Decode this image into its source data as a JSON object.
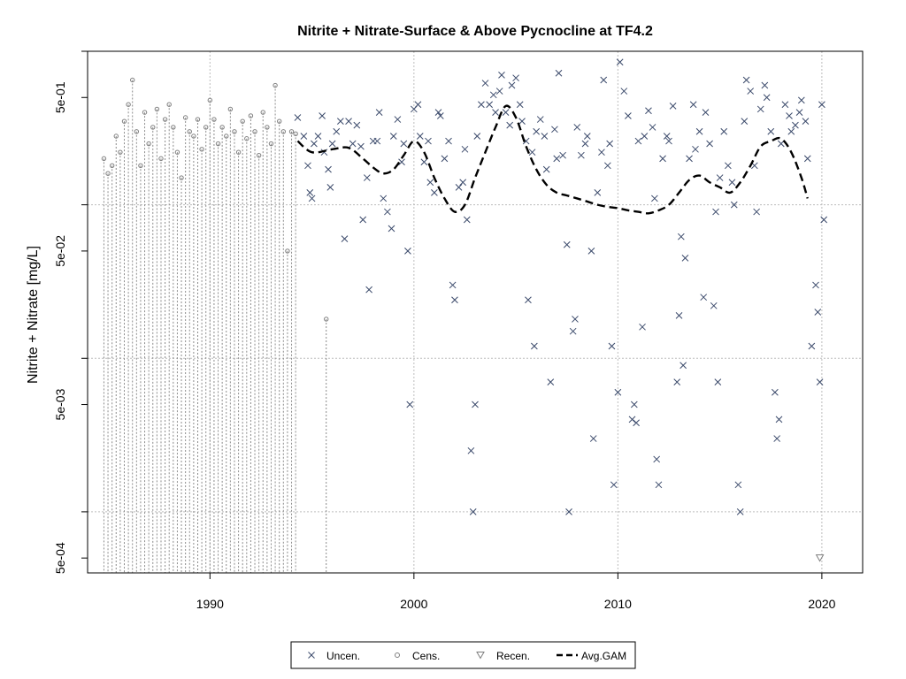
{
  "chart_data": {
    "type": "scatter",
    "title": "Nitrite + Nitrate-Surface & Above Pycnocline at TF4.2",
    "xlabel": "",
    "ylabel": "Nitrite + Nitrate [mg/L]",
    "y_scale": "log10",
    "xlim": [
      1984,
      2022
    ],
    "ylim": [
      0.0004,
      1.0
    ],
    "x_ticks": [
      1990,
      2000,
      2010,
      2020
    ],
    "x_tick_labels": [
      "1990",
      "2000",
      "2010",
      "2020"
    ],
    "y_ticks": [
      0.0005,
      0.005,
      0.05,
      0.5
    ],
    "y_tick_labels": [
      "5e-04",
      "5e-03",
      "5e-02",
      "5e-01"
    ],
    "y_gridlines": [
      0.001,
      0.01,
      0.1,
      1.0
    ],
    "x_gridlines": [
      1990,
      2000,
      2010,
      2020
    ],
    "grid": true,
    "legend_position": "bottom",
    "legend": [
      {
        "label": "Uncen.",
        "symbol": "x",
        "color": "#3b4a6b"
      },
      {
        "label": "Cens.",
        "symbol": "circle",
        "color": "#7f7f7f"
      },
      {
        "label": "Recen.",
        "symbol": "triangle-down",
        "color": "#7f7f7f"
      },
      {
        "label": "Avg.GAM",
        "symbol": "dashed-line",
        "color": "#000000"
      }
    ],
    "series": [
      {
        "name": "Uncen.",
        "points": [
          [
            1994.3,
            0.37
          ],
          [
            1994.6,
            0.28
          ],
          [
            1994.8,
            0.18
          ],
          [
            1994.9,
            0.12
          ],
          [
            1995.0,
            0.11
          ],
          [
            1995.1,
            0.25
          ],
          [
            1995.3,
            0.28
          ],
          [
            1995.5,
            0.38
          ],
          [
            1995.6,
            0.22
          ],
          [
            1995.8,
            0.17
          ],
          [
            1995.9,
            0.13
          ],
          [
            1996.0,
            0.25
          ],
          [
            1996.2,
            0.3
          ],
          [
            1996.4,
            0.35
          ],
          [
            1996.6,
            0.06
          ],
          [
            1996.8,
            0.35
          ],
          [
            1997.0,
            0.25
          ],
          [
            1997.2,
            0.33
          ],
          [
            1997.4,
            0.24
          ],
          [
            1997.5,
            0.08
          ],
          [
            1997.7,
            0.15
          ],
          [
            1997.8,
            0.028
          ],
          [
            1998.0,
            0.26
          ],
          [
            1998.2,
            0.26
          ],
          [
            1998.3,
            0.4
          ],
          [
            1998.5,
            0.11
          ],
          [
            1998.7,
            0.09
          ],
          [
            1998.9,
            0.07
          ],
          [
            1999.0,
            0.28
          ],
          [
            1999.2,
            0.36
          ],
          [
            1999.4,
            0.19
          ],
          [
            1999.5,
            0.25
          ],
          [
            1999.7,
            0.05
          ],
          [
            1999.8,
            0.005
          ],
          [
            2000.0,
            0.42
          ],
          [
            2000.2,
            0.45
          ],
          [
            2000.3,
            0.28
          ],
          [
            2000.5,
            0.19
          ],
          [
            2000.7,
            0.26
          ],
          [
            2000.8,
            0.14
          ],
          [
            2001.0,
            0.12
          ],
          [
            2001.2,
            0.4
          ],
          [
            2001.3,
            0.38
          ],
          [
            2001.5,
            0.2
          ],
          [
            2001.7,
            0.26
          ],
          [
            2001.9,
            0.03
          ],
          [
            2002.0,
            0.024
          ],
          [
            2002.2,
            0.13
          ],
          [
            2002.4,
            0.14
          ],
          [
            2002.5,
            0.23
          ],
          [
            2002.6,
            0.08
          ],
          [
            2002.8,
            0.0025
          ],
          [
            2002.9,
            0.001
          ],
          [
            2003.0,
            0.005
          ],
          [
            2003.1,
            0.28
          ],
          [
            2003.3,
            0.45
          ],
          [
            2003.5,
            0.62
          ],
          [
            2003.7,
            0.45
          ],
          [
            2003.9,
            0.52
          ],
          [
            2004.0,
            0.4
          ],
          [
            2004.2,
            0.55
          ],
          [
            2004.3,
            0.7
          ],
          [
            2004.5,
            0.4
          ],
          [
            2004.7,
            0.33
          ],
          [
            2004.8,
            0.6
          ],
          [
            2005.0,
            0.67
          ],
          [
            2005.2,
            0.45
          ],
          [
            2005.3,
            0.35
          ],
          [
            2005.5,
            0.26
          ],
          [
            2005.6,
            0.024
          ],
          [
            2005.8,
            0.22
          ],
          [
            2005.9,
            0.012
          ],
          [
            2006.0,
            0.3
          ],
          [
            2006.2,
            0.36
          ],
          [
            2006.4,
            0.28
          ],
          [
            2006.5,
            0.17
          ],
          [
            2006.7,
            0.007
          ],
          [
            2006.9,
            0.31
          ],
          [
            2007.0,
            0.2
          ],
          [
            2007.1,
            0.72
          ],
          [
            2007.3,
            0.21
          ],
          [
            2007.5,
            0.055
          ],
          [
            2007.6,
            0.001
          ],
          [
            2007.8,
            0.015
          ],
          [
            2007.9,
            0.018
          ],
          [
            2008.0,
            0.32
          ],
          [
            2008.2,
            0.21
          ],
          [
            2008.4,
            0.25
          ],
          [
            2008.5,
            0.28
          ],
          [
            2008.7,
            0.05
          ],
          [
            2008.8,
            0.003
          ],
          [
            2009.0,
            0.12
          ],
          [
            2009.2,
            0.22
          ],
          [
            2009.3,
            0.65
          ],
          [
            2009.5,
            0.18
          ],
          [
            2009.6,
            0.25
          ],
          [
            2009.7,
            0.012
          ],
          [
            2009.8,
            0.0015
          ],
          [
            2010.0,
            0.006
          ],
          [
            2010.1,
            0.85
          ],
          [
            2010.3,
            0.55
          ],
          [
            2010.5,
            0.38
          ],
          [
            2010.7,
            0.004
          ],
          [
            2010.8,
            0.005
          ],
          [
            2010.9,
            0.0038
          ],
          [
            2011.0,
            0.26
          ],
          [
            2011.2,
            0.016
          ],
          [
            2011.3,
            0.28
          ],
          [
            2011.5,
            0.41
          ],
          [
            2011.7,
            0.32
          ],
          [
            2011.8,
            0.11
          ],
          [
            2011.9,
            0.0022
          ],
          [
            2012.0,
            0.0015
          ],
          [
            2012.2,
            0.2
          ],
          [
            2012.4,
            0.28
          ],
          [
            2012.5,
            0.26
          ],
          [
            2012.7,
            0.44
          ],
          [
            2012.9,
            0.007
          ],
          [
            2013.0,
            0.019
          ],
          [
            2013.1,
            0.062
          ],
          [
            2013.2,
            0.009
          ],
          [
            2013.3,
            0.045
          ],
          [
            2013.5,
            0.2
          ],
          [
            2013.7,
            0.45
          ],
          [
            2013.8,
            0.23
          ],
          [
            2014.0,
            0.3
          ],
          [
            2014.2,
            0.025
          ],
          [
            2014.3,
            0.4
          ],
          [
            2014.5,
            0.25
          ],
          [
            2014.7,
            0.022
          ],
          [
            2014.8,
            0.09
          ],
          [
            2014.9,
            0.007
          ],
          [
            2015.0,
            0.15
          ],
          [
            2015.2,
            0.3
          ],
          [
            2015.4,
            0.18
          ],
          [
            2015.6,
            0.14
          ],
          [
            2015.7,
            0.1
          ],
          [
            2015.9,
            0.0015
          ],
          [
            2016.0,
            0.001
          ],
          [
            2016.2,
            0.35
          ],
          [
            2016.3,
            0.65
          ],
          [
            2016.5,
            0.55
          ],
          [
            2016.7,
            0.18
          ],
          [
            2016.8,
            0.09
          ],
          [
            2017.0,
            0.42
          ],
          [
            2017.2,
            0.6
          ],
          [
            2017.3,
            0.5
          ],
          [
            2017.5,
            0.3
          ],
          [
            2017.7,
            0.006
          ],
          [
            2017.8,
            0.003
          ],
          [
            2017.9,
            0.004
          ],
          [
            2018.0,
            0.25
          ],
          [
            2018.2,
            0.45
          ],
          [
            2018.4,
            0.38
          ],
          [
            2018.5,
            0.3
          ],
          [
            2018.7,
            0.33
          ],
          [
            2018.9,
            0.4
          ],
          [
            2019.0,
            0.48
          ],
          [
            2019.2,
            0.35
          ],
          [
            2019.3,
            0.2
          ],
          [
            2019.5,
            0.012
          ],
          [
            2019.7,
            0.03
          ],
          [
            2019.8,
            0.02
          ],
          [
            2019.9,
            0.007
          ],
          [
            2020.0,
            0.45
          ],
          [
            2020.1,
            0.08
          ]
        ]
      },
      {
        "name": "Cens.",
        "points": [
          [
            1984.8,
            0.2
          ],
          [
            1985.0,
            0.16
          ],
          [
            1985.2,
            0.18
          ],
          [
            1985.4,
            0.28
          ],
          [
            1985.6,
            0.22
          ],
          [
            1985.8,
            0.35
          ],
          [
            1986.0,
            0.45
          ],
          [
            1986.2,
            0.65
          ],
          [
            1986.4,
            0.3
          ],
          [
            1986.6,
            0.18
          ],
          [
            1986.8,
            0.4
          ],
          [
            1987.0,
            0.25
          ],
          [
            1987.2,
            0.32
          ],
          [
            1987.4,
            0.42
          ],
          [
            1987.6,
            0.2
          ],
          [
            1987.8,
            0.36
          ],
          [
            1988.0,
            0.45
          ],
          [
            1988.2,
            0.32
          ],
          [
            1988.4,
            0.22
          ],
          [
            1988.6,
            0.15
          ],
          [
            1988.8,
            0.37
          ],
          [
            1989.0,
            0.3
          ],
          [
            1989.2,
            0.28
          ],
          [
            1989.4,
            0.36
          ],
          [
            1989.6,
            0.23
          ],
          [
            1989.8,
            0.32
          ],
          [
            1990.0,
            0.48
          ],
          [
            1990.2,
            0.36
          ],
          [
            1990.4,
            0.25
          ],
          [
            1990.6,
            0.32
          ],
          [
            1990.8,
            0.28
          ],
          [
            1991.0,
            0.42
          ],
          [
            1991.2,
            0.3
          ],
          [
            1991.4,
            0.22
          ],
          [
            1991.6,
            0.35
          ],
          [
            1991.8,
            0.27
          ],
          [
            1992.0,
            0.38
          ],
          [
            1992.2,
            0.3
          ],
          [
            1992.4,
            0.21
          ],
          [
            1992.6,
            0.4
          ],
          [
            1992.8,
            0.32
          ],
          [
            1993.0,
            0.25
          ],
          [
            1993.2,
            0.6
          ],
          [
            1993.4,
            0.35
          ],
          [
            1993.6,
            0.3
          ],
          [
            1993.8,
            0.05
          ],
          [
            1994.0,
            0.3
          ],
          [
            1994.2,
            0.29
          ],
          [
            1995.7,
            0.018
          ]
        ]
      },
      {
        "name": "Recen.",
        "points": [
          [
            2019.9,
            0.0005
          ]
        ]
      },
      {
        "name": "Avg.GAM",
        "points": [
          [
            1994.3,
            0.26
          ],
          [
            1995.0,
            0.22
          ],
          [
            1996.0,
            0.23
          ],
          [
            1996.8,
            0.235
          ],
          [
            1997.5,
            0.2
          ],
          [
            1998.0,
            0.175
          ],
          [
            1998.5,
            0.16
          ],
          [
            1999.0,
            0.17
          ],
          [
            1999.5,
            0.21
          ],
          [
            2000.0,
            0.26
          ],
          [
            2000.5,
            0.22
          ],
          [
            2001.0,
            0.15
          ],
          [
            2001.5,
            0.11
          ],
          [
            2002.0,
            0.09
          ],
          [
            2002.5,
            0.1
          ],
          [
            2003.0,
            0.15
          ],
          [
            2003.5,
            0.22
          ],
          [
            2004.0,
            0.32
          ],
          [
            2004.5,
            0.44
          ],
          [
            2005.0,
            0.37
          ],
          [
            2005.5,
            0.24
          ],
          [
            2006.0,
            0.17
          ],
          [
            2006.5,
            0.135
          ],
          [
            2007.0,
            0.12
          ],
          [
            2007.5,
            0.115
          ],
          [
            2008.0,
            0.11
          ],
          [
            2008.5,
            0.105
          ],
          [
            2009.0,
            0.1
          ],
          [
            2009.5,
            0.097
          ],
          [
            2010.0,
            0.095
          ],
          [
            2010.5,
            0.092
          ],
          [
            2011.0,
            0.09
          ],
          [
            2011.5,
            0.088
          ],
          [
            2012.0,
            0.092
          ],
          [
            2012.5,
            0.1
          ],
          [
            2013.0,
            0.12
          ],
          [
            2013.5,
            0.145
          ],
          [
            2014.0,
            0.155
          ],
          [
            2014.5,
            0.14
          ],
          [
            2015.0,
            0.13
          ],
          [
            2015.5,
            0.12
          ],
          [
            2016.0,
            0.14
          ],
          [
            2016.5,
            0.18
          ],
          [
            2017.0,
            0.24
          ],
          [
            2017.5,
            0.26
          ],
          [
            2018.0,
            0.27
          ],
          [
            2018.5,
            0.22
          ],
          [
            2019.0,
            0.15
          ],
          [
            2019.3,
            0.11
          ]
        ]
      }
    ]
  }
}
